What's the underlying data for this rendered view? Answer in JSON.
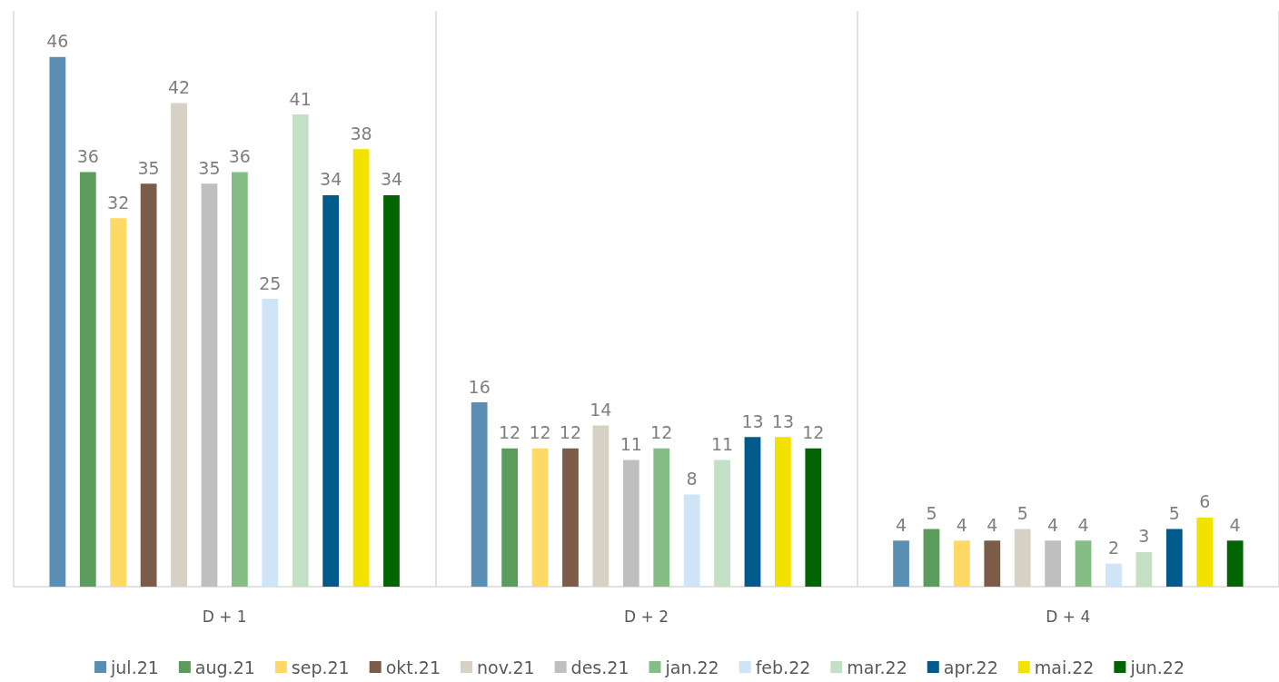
{
  "chart_data": {
    "type": "bar",
    "categories": [
      "D + 1",
      "D + 2",
      "D + 4"
    ],
    "series": [
      {
        "name": "jul.21",
        "color": "#5a8fb3",
        "values": [
          46,
          16,
          4
        ]
      },
      {
        "name": "aug.21",
        "color": "#5b9b5b",
        "values": [
          36,
          12,
          5
        ]
      },
      {
        "name": "sep.21",
        "color": "#ffd966",
        "values": [
          32,
          12,
          4
        ]
      },
      {
        "name": "okt.21",
        "color": "#7a5c48",
        "values": [
          35,
          12,
          4
        ]
      },
      {
        "name": "nov.21",
        "color": "#d6d1c4",
        "values": [
          42,
          14,
          5
        ]
      },
      {
        "name": "des.21",
        "color": "#bfbfbf",
        "values": [
          35,
          11,
          4
        ]
      },
      {
        "name": "jan.22",
        "color": "#84bd86",
        "values": [
          36,
          12,
          4
        ]
      },
      {
        "name": "feb.22",
        "color": "#cfe4f7",
        "values": [
          25,
          8,
          2
        ]
      },
      {
        "name": "mar.22",
        "color": "#c3dfc6",
        "values": [
          41,
          11,
          3
        ]
      },
      {
        "name": "apr.22",
        "color": "#005a8c",
        "values": [
          34,
          13,
          5
        ]
      },
      {
        "name": "mai.22",
        "color": "#f2e200",
        "values": [
          38,
          13,
          6
        ]
      },
      {
        "name": "jun.22",
        "color": "#006400",
        "values": [
          34,
          12,
          4
        ]
      }
    ],
    "data_labels": true,
    "grid": "x",
    "legend": "bottom"
  }
}
